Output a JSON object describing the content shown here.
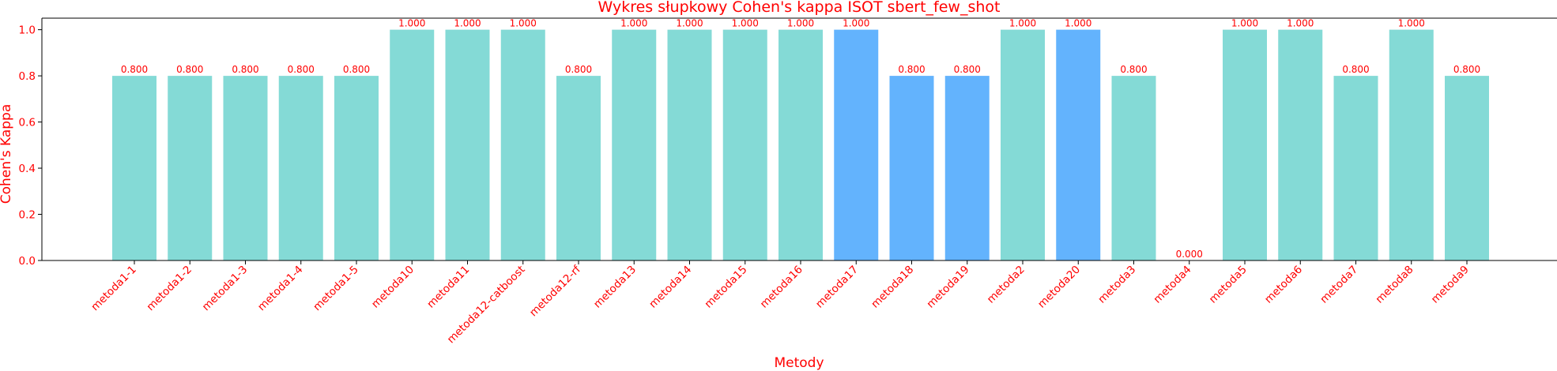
{
  "chart_data": {
    "type": "bar",
    "title": "Wykres słupkowy Cohen's kappa ISOT sbert_few_shot",
    "xlabel": "Metody",
    "ylabel": "Cohen's Kappa",
    "ylim": [
      0,
      1.05
    ],
    "yticks": [
      "0.0",
      "0.2",
      "0.4",
      "0.6",
      "0.8",
      "1.0"
    ],
    "categories": [
      "metoda1-1",
      "metoda1-2",
      "metoda1-3",
      "metoda1-4",
      "metoda1-5",
      "metoda10",
      "metoda11",
      "metoda12-catboost",
      "metoda12-rf",
      "metoda13",
      "metoda14",
      "metoda15",
      "metoda16",
      "metoda17",
      "metoda18",
      "metoda19",
      "metoda2",
      "metoda20",
      "metoda3",
      "metoda4",
      "metoda5",
      "metoda6",
      "metoda7",
      "metoda8",
      "metoda9"
    ],
    "values": [
      0.8,
      0.8,
      0.8,
      0.8,
      0.8,
      1.0,
      1.0,
      1.0,
      0.8,
      1.0,
      1.0,
      1.0,
      1.0,
      1.0,
      0.8,
      0.8,
      1.0,
      1.0,
      0.8,
      0.0,
      1.0,
      1.0,
      0.8,
      1.0,
      0.8
    ],
    "value_labels": [
      "0.800",
      "0.800",
      "0.800",
      "0.800",
      "0.800",
      "1.000",
      "1.000",
      "1.000",
      "0.800",
      "1.000",
      "1.000",
      "1.000",
      "1.000",
      "1.000",
      "0.800",
      "0.800",
      "1.000",
      "1.000",
      "0.800",
      "0.000",
      "1.000",
      "1.000",
      "0.800",
      "1.000",
      "0.800"
    ],
    "highlighted": [
      false,
      false,
      false,
      false,
      false,
      false,
      false,
      false,
      false,
      false,
      false,
      false,
      false,
      true,
      true,
      true,
      false,
      true,
      false,
      false,
      false,
      false,
      false,
      false,
      false
    ],
    "colors": {
      "bar": "#84dad6",
      "highlight": "#63b3fd",
      "text": "#ff0000",
      "axis": "#000000"
    },
    "grid": false,
    "legend": "none"
  }
}
